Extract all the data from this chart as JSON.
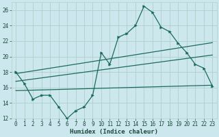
{
  "xlabel": "Humidex (Indice chaleur)",
  "ylabel": "",
  "background_color": "#cce8ee",
  "grid_color": "#b0d0c8",
  "line_color": "#1a6b5a",
  "xlim": [
    -0.5,
    23.5
  ],
  "ylim": [
    12,
    27
  ],
  "yticks": [
    12,
    14,
    16,
    18,
    20,
    22,
    24,
    26
  ],
  "xticks": [
    0,
    1,
    2,
    3,
    4,
    5,
    6,
    7,
    8,
    9,
    10,
    11,
    12,
    13,
    14,
    15,
    16,
    17,
    18,
    19,
    20,
    21,
    22,
    23
  ],
  "main_x": [
    0,
    1,
    2,
    3,
    4,
    5,
    6,
    7,
    8,
    9,
    10,
    11,
    12,
    13,
    14,
    15,
    16,
    17,
    18,
    19,
    20,
    21,
    22,
    23
  ],
  "main_y": [
    18,
    16.5,
    14.5,
    15,
    15,
    13.5,
    12.0,
    13.0,
    13.5,
    15.0,
    20.5,
    19.0,
    22.5,
    23.0,
    24.0,
    26.5,
    25.7,
    23.8,
    23.2,
    21.7,
    20.5,
    19.0,
    18.5,
    16.2
  ],
  "line2_x": [
    0,
    23
  ],
  "line2_y": [
    17.8,
    21.8
  ],
  "line3_x": [
    0,
    23
  ],
  "line3_y": [
    16.8,
    20.2
  ],
  "line4_x": [
    0,
    23
  ],
  "line4_y": [
    15.6,
    16.3
  ],
  "tick_fontsize": 5.5,
  "label_fontsize": 6.5
}
